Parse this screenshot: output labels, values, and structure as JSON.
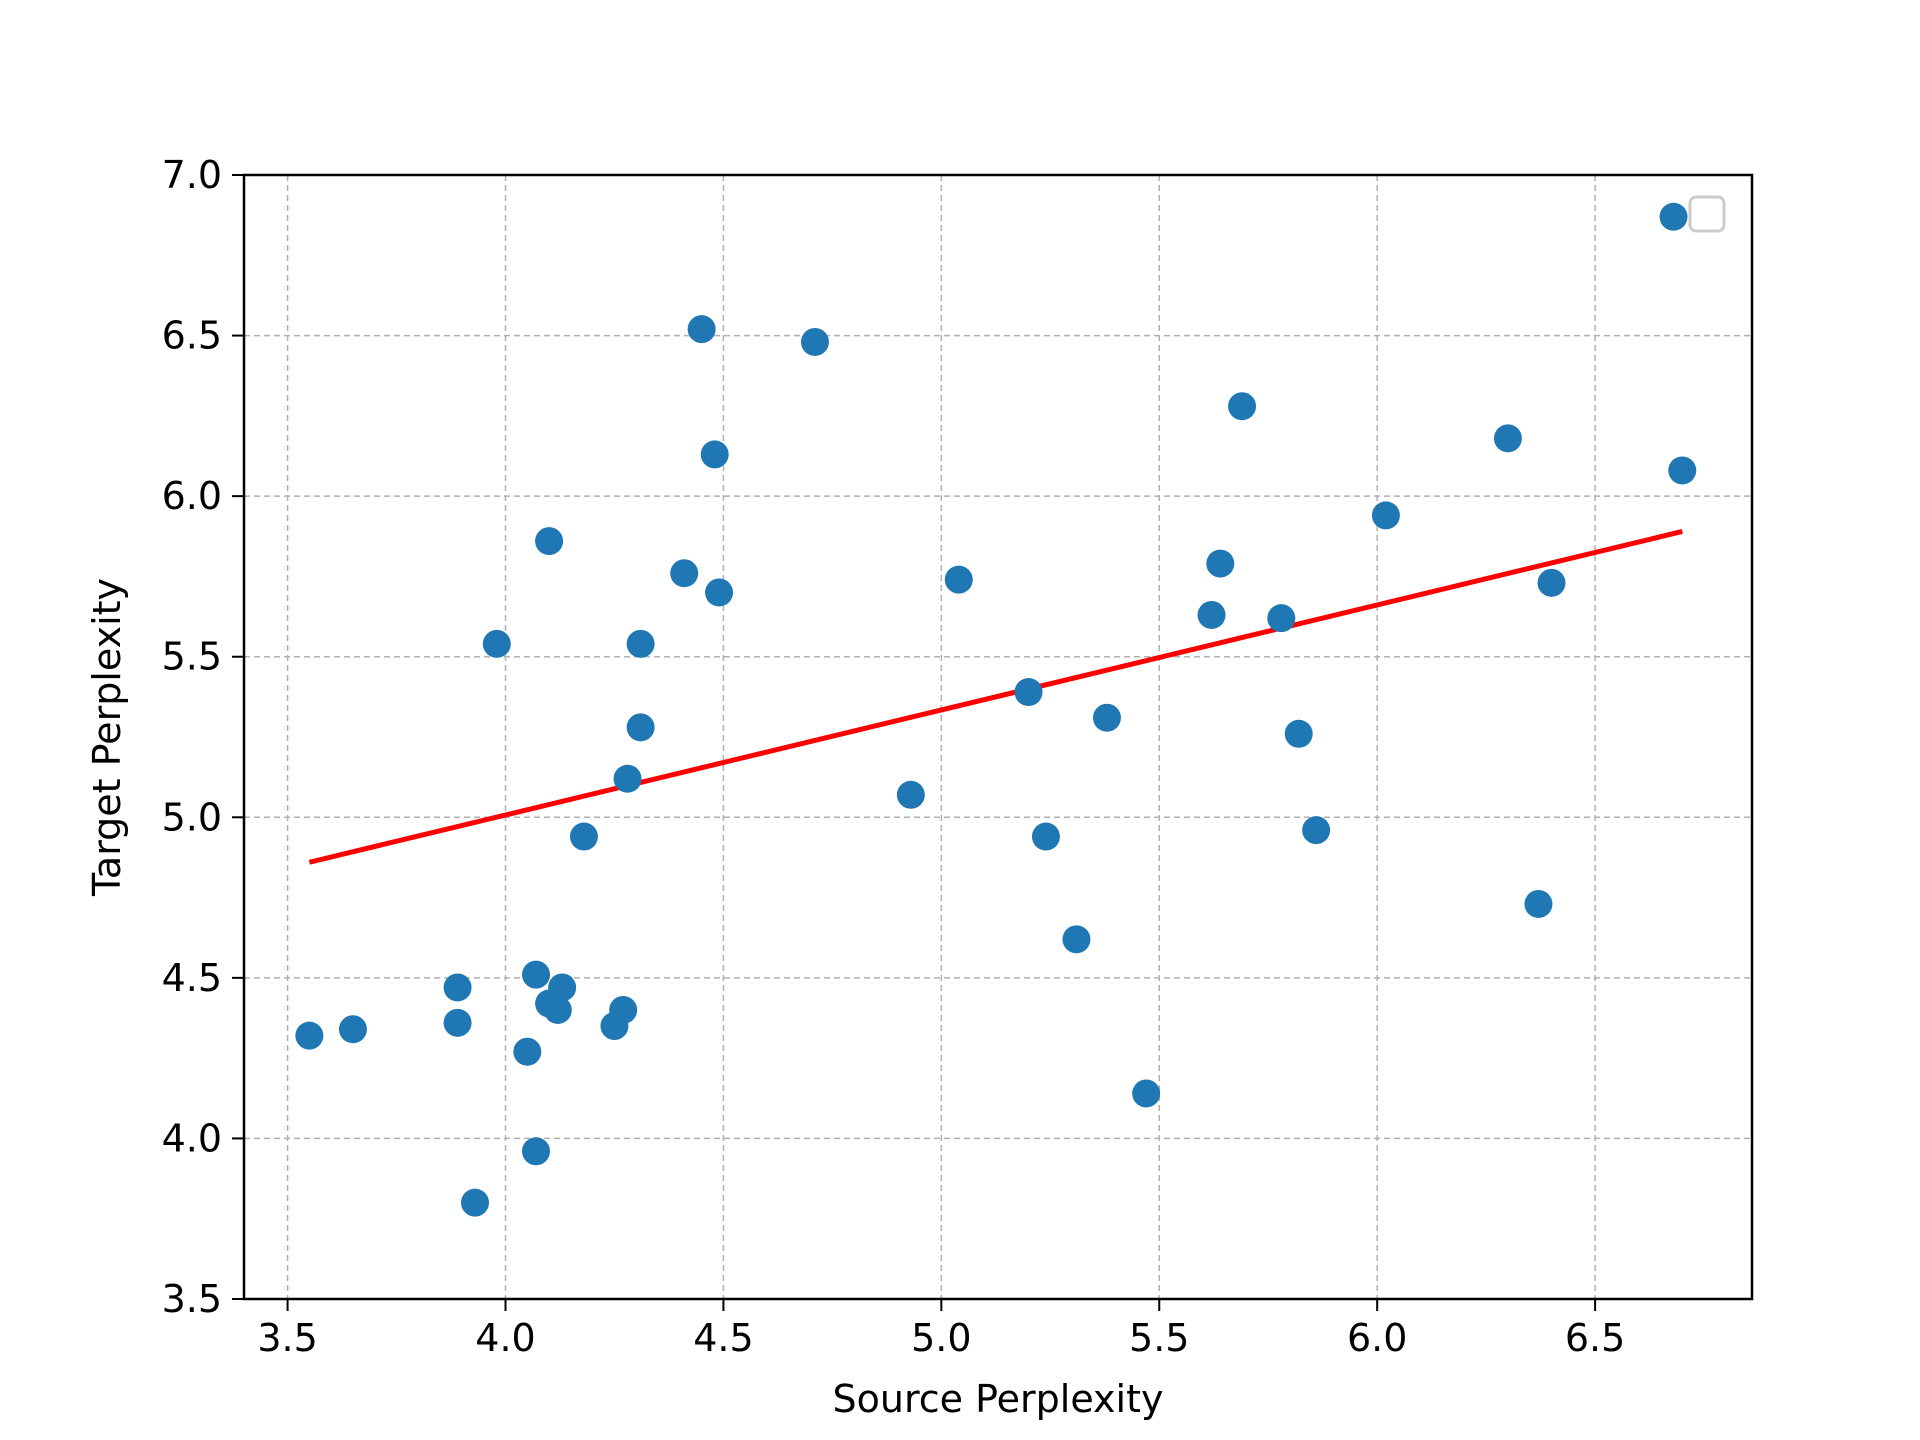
{
  "colors": {
    "points": "#1f77b4",
    "trend": "#ff0000",
    "grid": "#b0b0b0",
    "legend_border": "#cccccc"
  },
  "chart_data": {
    "type": "scatter",
    "title": "",
    "xlabel": "Source Perplexity",
    "ylabel": "Target Perplexity",
    "xlim": [
      3.4,
      6.86
    ],
    "ylim": [
      3.5,
      7.0
    ],
    "xticks": [
      3.5,
      4.0,
      4.5,
      5.0,
      5.5,
      6.0,
      6.5
    ],
    "yticks": [
      3.5,
      4.0,
      4.5,
      5.0,
      5.5,
      6.0,
      6.5,
      7.0
    ],
    "xtick_labels": [
      "3.5",
      "4.0",
      "4.5",
      "5.0",
      "5.5",
      "6.0",
      "6.5"
    ],
    "ytick_labels": [
      "3.5",
      "4.0",
      "4.5",
      "5.0",
      "5.5",
      "6.0",
      "6.5",
      "7.0"
    ],
    "grid": true,
    "legend": {
      "placement": "top-right",
      "entries": []
    },
    "series": [
      {
        "points": [
          {
            "x": 3.55,
            "y": 4.32
          },
          {
            "x": 3.65,
            "y": 4.34
          },
          {
            "x": 3.89,
            "y": 4.47
          },
          {
            "x": 3.89,
            "y": 4.36
          },
          {
            "x": 3.93,
            "y": 3.8
          },
          {
            "x": 3.98,
            "y": 5.54
          },
          {
            "x": 4.05,
            "y": 4.27
          },
          {
            "x": 4.07,
            "y": 4.51
          },
          {
            "x": 4.07,
            "y": 3.96
          },
          {
            "x": 4.1,
            "y": 4.42
          },
          {
            "x": 4.1,
            "y": 5.86
          },
          {
            "x": 4.12,
            "y": 4.4
          },
          {
            "x": 4.13,
            "y": 4.47
          },
          {
            "x": 4.18,
            "y": 4.94
          },
          {
            "x": 4.25,
            "y": 4.35
          },
          {
            "x": 4.27,
            "y": 4.4
          },
          {
            "x": 4.28,
            "y": 5.12
          },
          {
            "x": 4.31,
            "y": 5.28
          },
          {
            "x": 4.31,
            "y": 5.54
          },
          {
            "x": 4.41,
            "y": 5.76
          },
          {
            "x": 4.45,
            "y": 6.52
          },
          {
            "x": 4.48,
            "y": 6.13
          },
          {
            "x": 4.49,
            "y": 5.7
          },
          {
            "x": 4.71,
            "y": 6.48
          },
          {
            "x": 4.93,
            "y": 5.07
          },
          {
            "x": 5.04,
            "y": 5.74
          },
          {
            "x": 5.2,
            "y": 5.39
          },
          {
            "x": 5.24,
            "y": 4.94
          },
          {
            "x": 5.31,
            "y": 4.62
          },
          {
            "x": 5.38,
            "y": 5.31
          },
          {
            "x": 5.47,
            "y": 4.14
          },
          {
            "x": 5.62,
            "y": 5.63
          },
          {
            "x": 5.64,
            "y": 5.79
          },
          {
            "x": 5.69,
            "y": 6.28
          },
          {
            "x": 5.78,
            "y": 5.62
          },
          {
            "x": 5.82,
            "y": 5.26
          },
          {
            "x": 5.86,
            "y": 4.96
          },
          {
            "x": 6.02,
            "y": 5.94
          },
          {
            "x": 6.3,
            "y": 6.18
          },
          {
            "x": 6.37,
            "y": 4.73
          },
          {
            "x": 6.4,
            "y": 5.73
          },
          {
            "x": 6.68,
            "y": 6.87
          },
          {
            "x": 6.7,
            "y": 6.08
          }
        ]
      }
    ],
    "trend_line": {
      "x": [
        3.55,
        6.7
      ],
      "y": [
        4.86,
        5.89
      ]
    }
  }
}
